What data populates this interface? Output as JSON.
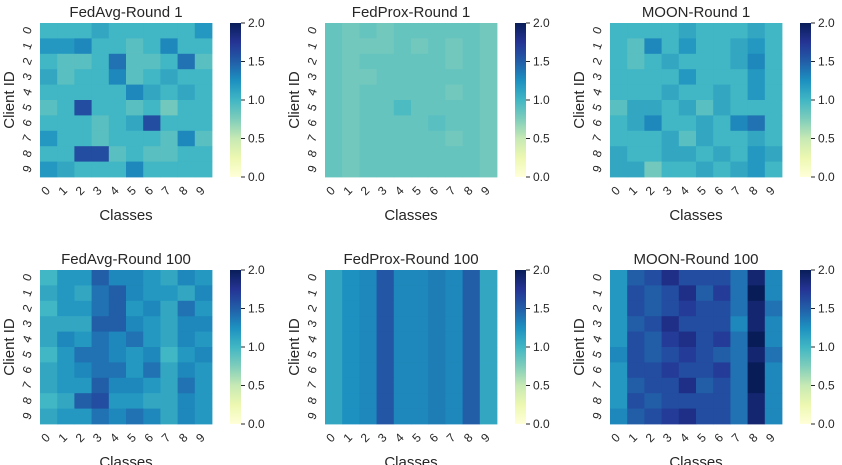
{
  "colormap": [
    "#ffffd9",
    "#edf8b1",
    "#c7e9b4",
    "#7fcdbb",
    "#41b6c4",
    "#1d91c0",
    "#225ea8",
    "#253494",
    "#081d58"
  ],
  "chart_data": [
    {
      "type": "heatmap",
      "title": "FedAvg-Round 1",
      "xlabel": "Classes",
      "ylabel": "Client ID",
      "x_categories": [
        "0",
        "1",
        "2",
        "3",
        "4",
        "5",
        "6",
        "7",
        "8",
        "9"
      ],
      "y_categories": [
        "0",
        "1",
        "2",
        "3",
        "4",
        "5",
        "6",
        "7",
        "8",
        "9"
      ],
      "vrange": [
        0,
        2
      ],
      "colorbar_ticks": [
        "0.0",
        "0.5",
        "1.0",
        "1.5",
        "2.0"
      ],
      "values": [
        [
          1.0,
          1.0,
          1.0,
          1.1,
          1.0,
          1.0,
          1.0,
          1.0,
          1.0,
          1.2
        ],
        [
          1.2,
          1.2,
          1.3,
          1.0,
          1.0,
          0.9,
          1.0,
          1.3,
          1.0,
          1.0
        ],
        [
          1.0,
          0.9,
          0.9,
          1.0,
          1.4,
          0.9,
          0.9,
          1.0,
          1.4,
          0.9
        ],
        [
          1.1,
          0.9,
          1.0,
          1.0,
          1.3,
          0.9,
          1.0,
          1.1,
          1.0,
          1.0
        ],
        [
          1.0,
          1.0,
          1.0,
          1.0,
          1.0,
          1.3,
          1.1,
          1.0,
          1.1,
          1.0
        ],
        [
          0.9,
          1.0,
          1.6,
          1.0,
          1.0,
          0.9,
          1.0,
          0.8,
          1.0,
          1.0
        ],
        [
          1.0,
          1.0,
          1.0,
          0.9,
          1.0,
          1.1,
          1.6,
          1.0,
          1.0,
          1.0
        ],
        [
          1.2,
          1.0,
          1.0,
          0.9,
          1.0,
          1.0,
          1.0,
          0.9,
          1.3,
          0.9
        ],
        [
          1.0,
          1.0,
          1.6,
          1.6,
          0.9,
          1.0,
          0.9,
          0.9,
          1.0,
          1.0
        ],
        [
          1.2,
          1.1,
          1.0,
          1.0,
          1.0,
          1.3,
          1.0,
          1.0,
          1.0,
          1.0
        ]
      ]
    },
    {
      "type": "heatmap",
      "title": "FedProx-Round 1",
      "xlabel": "Classes",
      "ylabel": "Client ID",
      "x_categories": [
        "0",
        "1",
        "2",
        "3",
        "4",
        "5",
        "6",
        "7",
        "8",
        "9"
      ],
      "y_categories": [
        "0",
        "1",
        "2",
        "3",
        "4",
        "5",
        "6",
        "7",
        "8",
        "9"
      ],
      "vrange": [
        0,
        2
      ],
      "colorbar_ticks": [
        "0.0",
        "0.5",
        "1.0",
        "1.5",
        "2.0"
      ],
      "values": [
        [
          0.85,
          0.8,
          0.85,
          0.8,
          0.85,
          0.85,
          0.85,
          0.85,
          0.85,
          0.8
        ],
        [
          0.85,
          0.8,
          0.8,
          0.8,
          0.85,
          0.8,
          0.85,
          0.8,
          0.85,
          0.8
        ],
        [
          0.85,
          0.8,
          0.85,
          0.85,
          0.85,
          0.85,
          0.85,
          0.8,
          0.85,
          0.8
        ],
        [
          0.85,
          0.8,
          0.8,
          0.85,
          0.85,
          0.85,
          0.85,
          0.85,
          0.85,
          0.8
        ],
        [
          0.85,
          0.8,
          0.85,
          0.85,
          0.85,
          0.85,
          0.85,
          0.8,
          0.85,
          0.8
        ],
        [
          0.85,
          0.8,
          0.85,
          0.85,
          0.95,
          0.85,
          0.85,
          0.85,
          0.85,
          0.8
        ],
        [
          0.85,
          0.8,
          0.85,
          0.85,
          0.85,
          0.85,
          0.9,
          0.85,
          0.85,
          0.8
        ],
        [
          0.85,
          0.8,
          0.85,
          0.85,
          0.85,
          0.85,
          0.85,
          0.8,
          0.85,
          0.8
        ],
        [
          0.85,
          0.8,
          0.85,
          0.85,
          0.85,
          0.85,
          0.85,
          0.85,
          0.85,
          0.8
        ],
        [
          0.85,
          0.8,
          0.85,
          0.85,
          0.85,
          0.85,
          0.85,
          0.85,
          0.85,
          0.8
        ]
      ]
    },
    {
      "type": "heatmap",
      "title": "MOON-Round 1",
      "xlabel": "Classes",
      "ylabel": "Client ID",
      "x_categories": [
        "0",
        "1",
        "2",
        "3",
        "4",
        "5",
        "6",
        "7",
        "8",
        "9"
      ],
      "y_categories": [
        "0",
        "1",
        "2",
        "3",
        "4",
        "5",
        "6",
        "7",
        "8",
        "9"
      ],
      "vrange": [
        0,
        2
      ],
      "colorbar_ticks": [
        "0.0",
        "0.5",
        "1.0",
        "1.5",
        "2.0"
      ],
      "values": [
        [
          1.0,
          1.0,
          1.0,
          1.0,
          1.1,
          1.0,
          1.0,
          1.0,
          1.1,
          1.0
        ],
        [
          1.0,
          0.9,
          1.3,
          1.0,
          1.2,
          1.0,
          1.0,
          1.1,
          1.2,
          1.0
        ],
        [
          1.0,
          0.9,
          1.0,
          1.1,
          1.0,
          1.0,
          1.0,
          1.1,
          1.3,
          1.0
        ],
        [
          1.0,
          1.0,
          1.0,
          1.0,
          1.2,
          1.0,
          1.0,
          1.0,
          1.2,
          1.0
        ],
        [
          1.0,
          1.0,
          1.0,
          1.1,
          1.0,
          1.0,
          1.1,
          1.0,
          1.2,
          1.0
        ],
        [
          0.9,
          1.1,
          1.1,
          1.0,
          1.1,
          0.9,
          1.1,
          1.0,
          1.0,
          1.0
        ],
        [
          1.0,
          1.1,
          1.3,
          1.0,
          1.0,
          1.1,
          1.0,
          1.3,
          1.4,
          1.0
        ],
        [
          1.0,
          1.0,
          1.0,
          1.1,
          0.9,
          1.1,
          1.0,
          1.0,
          1.1,
          1.0
        ],
        [
          1.1,
          1.0,
          1.0,
          1.1,
          1.1,
          1.0,
          1.1,
          1.0,
          1.2,
          1.1
        ],
        [
          1.1,
          1.1,
          0.8,
          1.0,
          1.0,
          1.1,
          1.0,
          1.1,
          1.2,
          1.0
        ]
      ]
    },
    {
      "type": "heatmap",
      "title": "FedAvg-Round 100",
      "xlabel": "Classes",
      "ylabel": "Client ID",
      "x_categories": [
        "0",
        "1",
        "2",
        "3",
        "4",
        "5",
        "6",
        "7",
        "8",
        "9"
      ],
      "y_categories": [
        "0",
        "1",
        "2",
        "3",
        "4",
        "5",
        "6",
        "7",
        "8",
        "9"
      ],
      "vrange": [
        0,
        2
      ],
      "colorbar_ticks": [
        "0.0",
        "0.5",
        "1.0",
        "1.5",
        "2.0"
      ],
      "values": [
        [
          1.0,
          1.2,
          1.2,
          1.5,
          1.3,
          1.3,
          1.2,
          1.1,
          1.3,
          1.2
        ],
        [
          1.1,
          1.2,
          1.1,
          1.4,
          1.5,
          1.3,
          1.2,
          1.2,
          1.1,
          1.3
        ],
        [
          1.0,
          1.2,
          1.2,
          1.4,
          1.5,
          1.2,
          1.3,
          1.1,
          1.4,
          1.2
        ],
        [
          1.1,
          1.1,
          1.1,
          1.5,
          1.5,
          1.3,
          1.2,
          1.1,
          1.3,
          1.3
        ],
        [
          1.1,
          1.3,
          1.2,
          1.4,
          1.3,
          1.4,
          1.2,
          1.1,
          1.3,
          1.2
        ],
        [
          1.0,
          1.2,
          1.4,
          1.4,
          1.3,
          1.2,
          1.3,
          1.0,
          1.2,
          1.3
        ],
        [
          1.1,
          1.2,
          1.3,
          1.4,
          1.4,
          1.2,
          1.4,
          1.1,
          1.3,
          1.2
        ],
        [
          1.1,
          1.2,
          1.2,
          1.5,
          1.3,
          1.3,
          1.2,
          1.1,
          1.4,
          1.2
        ],
        [
          1.0,
          1.1,
          1.5,
          1.6,
          1.2,
          1.2,
          1.1,
          1.1,
          1.3,
          1.2
        ],
        [
          1.1,
          1.2,
          1.2,
          1.4,
          1.3,
          1.4,
          1.3,
          1.1,
          1.3,
          1.2
        ]
      ]
    },
    {
      "type": "heatmap",
      "title": "FedProx-Round 100",
      "xlabel": "Classes",
      "ylabel": "Client ID",
      "x_categories": [
        "0",
        "1",
        "2",
        "3",
        "4",
        "5",
        "6",
        "7",
        "8",
        "9"
      ],
      "y_categories": [
        "0",
        "1",
        "2",
        "3",
        "4",
        "5",
        "6",
        "7",
        "8",
        "9"
      ],
      "vrange": [
        0,
        2
      ],
      "colorbar_ticks": [
        "0.0",
        "0.5",
        "1.0",
        "1.5",
        "2.0"
      ],
      "values": [
        [
          1.1,
          1.25,
          1.3,
          1.55,
          1.3,
          1.3,
          1.35,
          1.3,
          1.5,
          1.1
        ],
        [
          1.1,
          1.25,
          1.3,
          1.55,
          1.3,
          1.3,
          1.35,
          1.3,
          1.5,
          1.1
        ],
        [
          1.1,
          1.25,
          1.3,
          1.55,
          1.3,
          1.3,
          1.35,
          1.3,
          1.5,
          1.1
        ],
        [
          1.1,
          1.25,
          1.3,
          1.55,
          1.3,
          1.3,
          1.35,
          1.3,
          1.5,
          1.1
        ],
        [
          1.1,
          1.25,
          1.3,
          1.55,
          1.3,
          1.3,
          1.35,
          1.3,
          1.5,
          1.1
        ],
        [
          1.1,
          1.25,
          1.3,
          1.55,
          1.3,
          1.3,
          1.35,
          1.3,
          1.5,
          1.1
        ],
        [
          1.1,
          1.25,
          1.3,
          1.55,
          1.3,
          1.3,
          1.35,
          1.3,
          1.5,
          1.1
        ],
        [
          1.1,
          1.25,
          1.3,
          1.55,
          1.3,
          1.3,
          1.35,
          1.3,
          1.5,
          1.1
        ],
        [
          1.1,
          1.25,
          1.3,
          1.55,
          1.3,
          1.3,
          1.35,
          1.3,
          1.5,
          1.1
        ],
        [
          1.1,
          1.25,
          1.3,
          1.55,
          1.3,
          1.3,
          1.35,
          1.3,
          1.5,
          1.1
        ]
      ]
    },
    {
      "type": "heatmap",
      "title": "MOON-Round 100",
      "xlabel": "Classes",
      "ylabel": "Client ID",
      "x_categories": [
        "0",
        "1",
        "2",
        "3",
        "4",
        "5",
        "6",
        "7",
        "8",
        "9"
      ],
      "y_categories": [
        "0",
        "1",
        "2",
        "3",
        "4",
        "5",
        "6",
        "7",
        "8",
        "9"
      ],
      "vrange": [
        0,
        2
      ],
      "colorbar_ticks": [
        "0.0",
        "0.5",
        "1.0",
        "1.5",
        "2.0"
      ],
      "values": [
        [
          1.2,
          1.5,
          1.6,
          1.8,
          1.6,
          1.6,
          1.6,
          1.4,
          1.9,
          1.3
        ],
        [
          1.2,
          1.6,
          1.5,
          1.6,
          1.8,
          1.5,
          1.7,
          1.4,
          2.0,
          1.3
        ],
        [
          1.2,
          1.6,
          1.5,
          1.6,
          1.7,
          1.6,
          1.6,
          1.4,
          1.9,
          1.4
        ],
        [
          1.2,
          1.5,
          1.6,
          1.8,
          1.6,
          1.6,
          1.6,
          1.3,
          1.9,
          1.3
        ],
        [
          1.2,
          1.6,
          1.5,
          1.7,
          1.8,
          1.6,
          1.7,
          1.4,
          2.0,
          1.3
        ],
        [
          1.3,
          1.6,
          1.5,
          1.6,
          1.7,
          1.6,
          1.5,
          1.4,
          1.9,
          1.4
        ],
        [
          1.2,
          1.6,
          1.6,
          1.7,
          1.6,
          1.6,
          1.7,
          1.4,
          2.0,
          1.3
        ],
        [
          1.2,
          1.5,
          1.6,
          1.6,
          1.8,
          1.5,
          1.6,
          1.4,
          2.0,
          1.3
        ],
        [
          1.2,
          1.6,
          1.5,
          1.6,
          1.6,
          1.6,
          1.6,
          1.4,
          1.9,
          1.3
        ],
        [
          1.3,
          1.5,
          1.6,
          1.7,
          1.8,
          1.6,
          1.6,
          1.4,
          1.9,
          1.3
        ]
      ]
    }
  ]
}
